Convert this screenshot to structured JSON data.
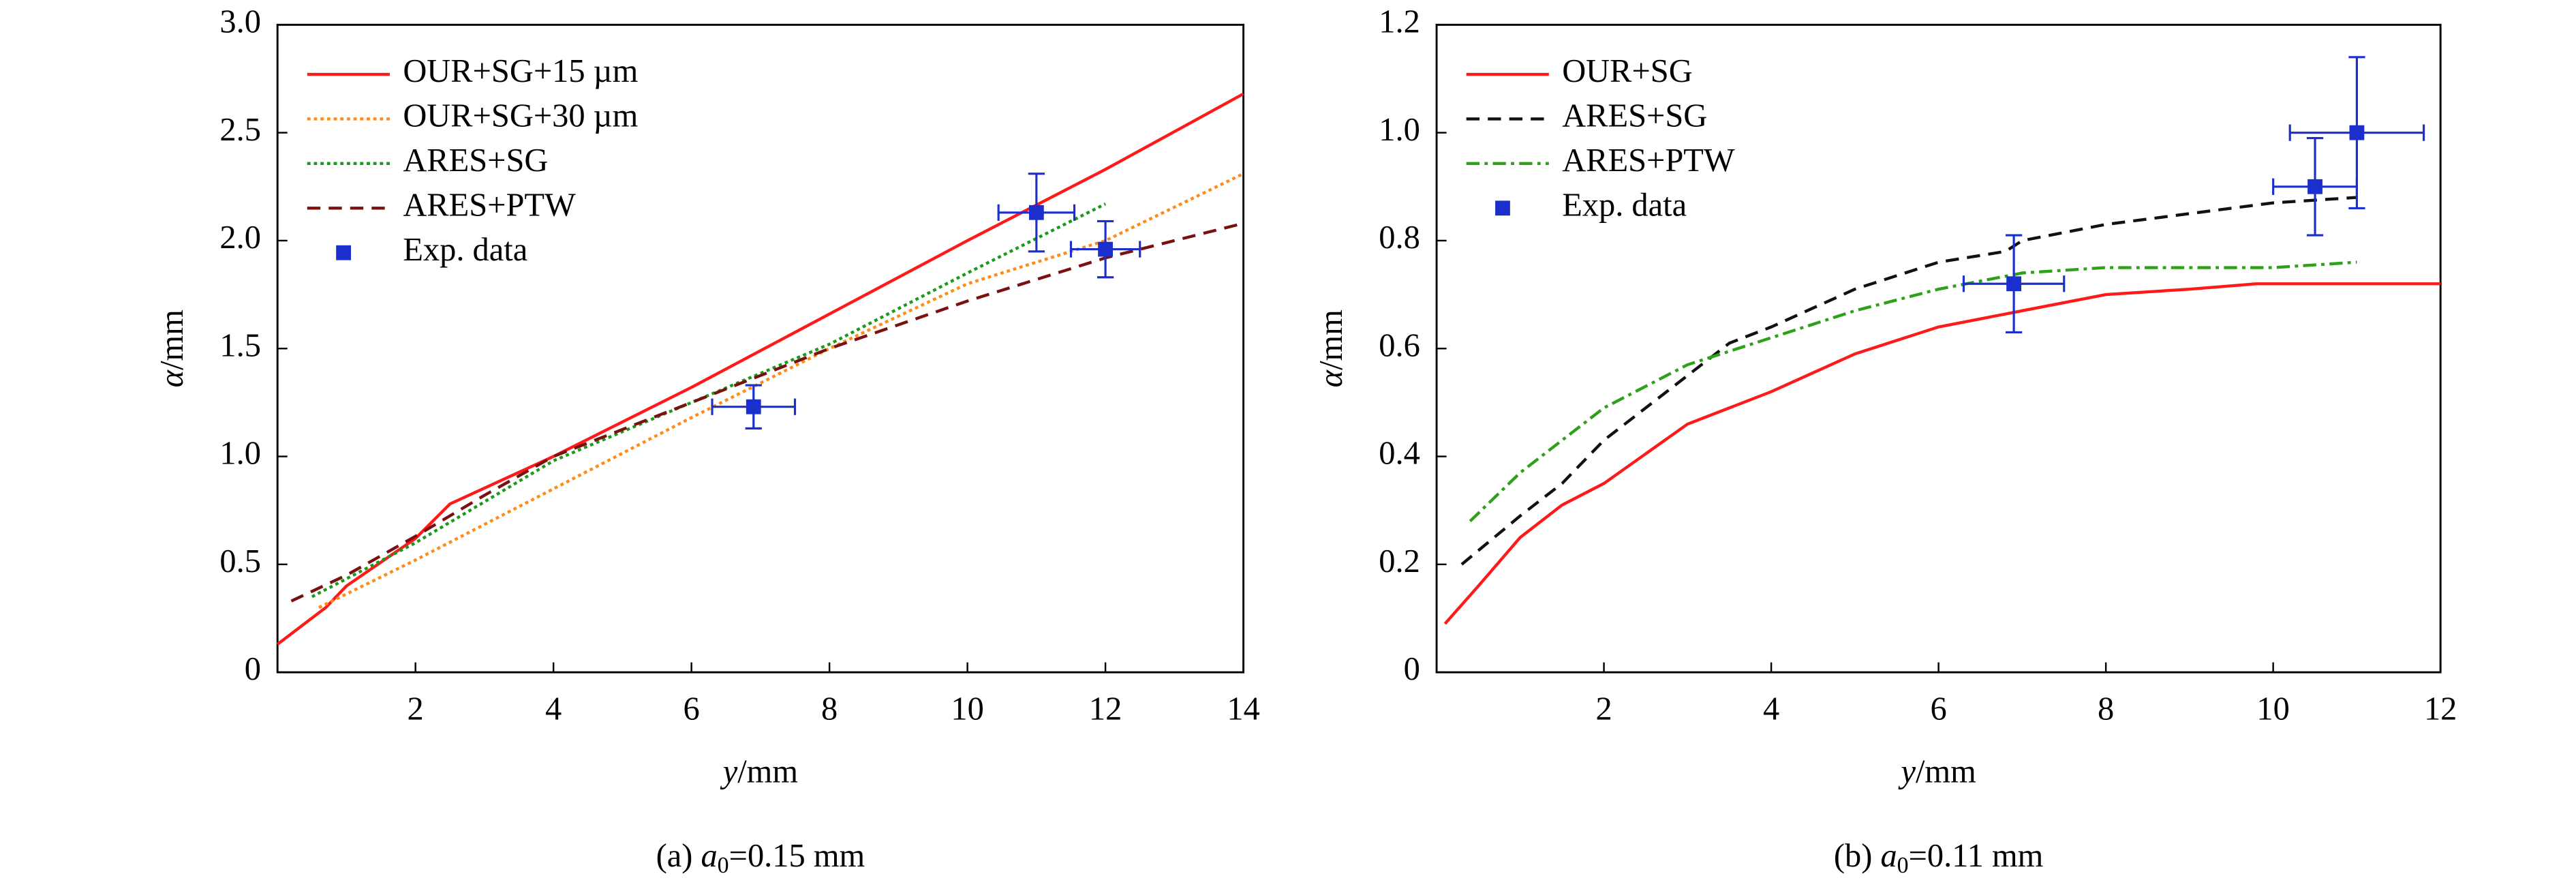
{
  "chart_data": [
    {
      "type": "line",
      "legend": "upper left",
      "grid": false,
      "xlabel": {
        "var": "y",
        "unit": "/mm"
      },
      "ylabel": {
        "var": "α",
        "unit": "/mm"
      },
      "caption": {
        "prefix": "(a) ",
        "var": "a",
        "sub": "0",
        "rest": "=0.15 mm"
      },
      "xlim": [
        0,
        14
      ],
      "xticks": [
        2,
        4,
        6,
        8,
        10,
        12,
        14
      ],
      "ylim": [
        0,
        3
      ],
      "yticks": [
        0,
        0.5,
        {
          "value": 1,
          "label": "1.0"
        },
        1.5,
        {
          "value": 2,
          "label": "2.0"
        },
        2.5,
        {
          "value": 3,
          "label": "3.0"
        }
      ],
      "series": [
        {
          "name": "OUR+SG+15 µm",
          "color": "#ff1a1a",
          "style": "solid",
          "x": [
            0,
            0.7,
            1,
            2,
            2.5,
            4,
            6,
            8,
            10,
            12,
            14
          ],
          "values": [
            0.13,
            0.3,
            0.4,
            0.62,
            0.78,
            1.0,
            1.32,
            1.66,
            2.0,
            2.33,
            2.68
          ]
        },
        {
          "name": "OUR+SG+30 µm",
          "color": "#ff8c1a",
          "style": "dotted",
          "x": [
            0.6,
            2,
            4,
            6,
            8,
            10,
            12,
            14
          ],
          "values": [
            0.3,
            0.52,
            0.85,
            1.18,
            1.5,
            1.8,
            2.0,
            2.31
          ]
        },
        {
          "name": "ARES+SG",
          "color": "#1a9a1a",
          "style": "dotted",
          "x": [
            0.5,
            2,
            4,
            6,
            8,
            10,
            12
          ],
          "values": [
            0.35,
            0.6,
            0.98,
            1.25,
            1.52,
            1.85,
            2.17
          ]
        },
        {
          "name": "ARES+PTW",
          "color": "#7a1010",
          "style": "dashed",
          "x": [
            0.2,
            1,
            2,
            3,
            4,
            6,
            8,
            10,
            12,
            14
          ],
          "values": [
            0.33,
            0.45,
            0.63,
            0.82,
            1.0,
            1.25,
            1.5,
            1.72,
            1.92,
            2.08
          ]
        },
        {
          "name": "Exp. data",
          "color": "#1a2fcc",
          "style": "marker",
          "x": [
            6.9,
            11,
            12
          ],
          "values": [
            1.23,
            2.13,
            1.96
          ],
          "xerr": [
            0.6,
            0.55,
            0.5
          ],
          "yerr": [
            0.1,
            0.18,
            0.13
          ]
        }
      ]
    },
    {
      "type": "line",
      "legend": "upper left",
      "grid": false,
      "xlabel": {
        "var": "y",
        "unit": "/mm"
      },
      "ylabel": {
        "var": "α",
        "unit": "/mm"
      },
      "caption": {
        "prefix": "(b) ",
        "var": "a",
        "sub": "0",
        "rest": "=0.11 mm"
      },
      "xlim": [
        0,
        12
      ],
      "xticks": [
        2,
        4,
        6,
        8,
        10,
        12
      ],
      "ylim": [
        0,
        1.2
      ],
      "yticks": [
        0,
        0.2,
        0.4,
        0.6,
        0.8,
        {
          "value": 1,
          "label": "1.0"
        },
        1.2
      ],
      "series": [
        {
          "name": "OUR+SG",
          "color": "#ff1a1a",
          "style": "solid",
          "x": [
            0.1,
            0.5,
            1,
            1.5,
            2,
            3,
            4,
            5,
            6,
            7,
            8,
            9,
            9.8,
            12
          ],
          "values": [
            0.09,
            0.16,
            0.25,
            0.31,
            0.35,
            0.46,
            0.52,
            0.59,
            0.64,
            0.67,
            0.7,
            0.71,
            0.72,
            0.72
          ]
        },
        {
          "name": "ARES+SG",
          "color": "#111111",
          "style": "dashed",
          "x": [
            0.3,
            1,
            1.5,
            2,
            3,
            3.5,
            4,
            5,
            6,
            6.8,
            7,
            8,
            9,
            10,
            11
          ],
          "values": [
            0.2,
            0.29,
            0.35,
            0.43,
            0.55,
            0.61,
            0.64,
            0.71,
            0.76,
            0.78,
            0.8,
            0.83,
            0.85,
            0.87,
            0.88
          ]
        },
        {
          "name": "ARES+PTW",
          "color": "#2ea01a",
          "style": "dashdot",
          "x": [
            0.4,
            1,
            2,
            3,
            4,
            5,
            6,
            7,
            8,
            9,
            10,
            11
          ],
          "values": [
            0.28,
            0.37,
            0.49,
            0.57,
            0.62,
            0.67,
            0.71,
            0.74,
            0.75,
            0.75,
            0.75,
            0.76
          ]
        },
        {
          "name": "Exp. data",
          "color": "#1a2fcc",
          "style": "marker",
          "x": [
            6.9,
            10.5,
            11
          ],
          "values": [
            0.72,
            0.9,
            1.0
          ],
          "xerr": [
            0.6,
            0.5,
            0.8
          ],
          "yerr": [
            0.09,
            0.09,
            0.14
          ]
        }
      ]
    }
  ]
}
